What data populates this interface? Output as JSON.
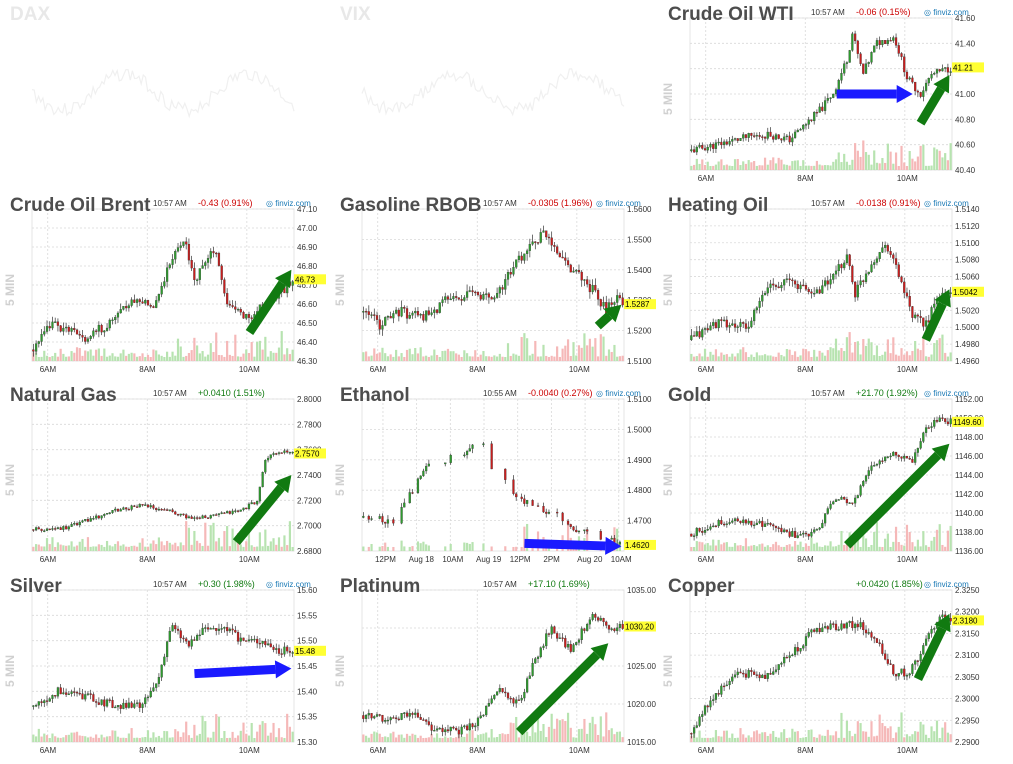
{
  "chart_data": [
    {
      "id": "dax",
      "type": "candlestick",
      "title": "DAX",
      "faded": true,
      "time": "",
      "change": "",
      "change_dir": "up",
      "source": "",
      "ylabel": "",
      "ylim": [
        0,
        1
      ],
      "yticks": [],
      "xticks": [],
      "last": null,
      "last_label": "",
      "arrow": null
    },
    {
      "id": "vix",
      "type": "candlestick",
      "title": "VIX",
      "faded": true,
      "time": "",
      "change": "",
      "change_dir": "up",
      "source": "",
      "ylabel": "",
      "ylim": [
        0,
        1
      ],
      "yticks": [],
      "xticks": [],
      "last": null,
      "last_label": "",
      "arrow": null
    },
    {
      "id": "wti",
      "type": "candlestick",
      "title": "Crude Oil WTI",
      "faded": false,
      "time": "10:57 AM",
      "change": "-0.06 (0.15%)",
      "change_dir": "dn",
      "source": "finviz.com",
      "ylabel": "5 MIN",
      "ylim": [
        40.4,
        41.6
      ],
      "yticks": [
        "41.60",
        "41.40",
        "41.20",
        "41.00",
        "40.80",
        "40.60",
        "40.40"
      ],
      "xticks": [
        "6AM",
        "8AM",
        "10AM"
      ],
      "last": 41.21,
      "last_label": "41.21",
      "keys": [
        [
          0,
          40.55
        ],
        [
          0.22,
          40.66
        ],
        [
          0.3,
          40.68
        ],
        [
          0.38,
          40.64
        ],
        [
          0.5,
          40.88
        ],
        [
          0.55,
          41.02
        ],
        [
          0.6,
          41.28
        ],
        [
          0.62,
          41.48
        ],
        [
          0.66,
          41.15
        ],
        [
          0.71,
          41.4
        ],
        [
          0.78,
          41.45
        ],
        [
          0.83,
          41.12
        ],
        [
          0.88,
          41.0
        ],
        [
          0.92,
          41.15
        ],
        [
          1,
          41.21
        ]
      ],
      "seed": 11,
      "vol": 0.03,
      "arrow": {
        "color": "blue",
        "from": [
          0.56,
          41.0
        ],
        "to": [
          0.85,
          41.0
        ]
      },
      "arrow2": {
        "color": "green",
        "from": [
          0.88,
          40.77
        ],
        "to": [
          0.99,
          41.15
        ]
      }
    },
    {
      "id": "brent",
      "type": "candlestick",
      "title": "Crude Oil Brent",
      "faded": false,
      "time": "10:57 AM",
      "change": "-0.43 (0.91%)",
      "change_dir": "dn",
      "source": "finviz.com",
      "ylabel": "5 MIN",
      "ylim": [
        46.3,
        47.1
      ],
      "yticks": [
        "47.10",
        "47.00",
        "46.90",
        "46.80",
        "46.70",
        "46.60",
        "46.50",
        "46.40",
        "46.30"
      ],
      "xticks": [
        "6AM",
        "8AM",
        "10AM"
      ],
      "last": 46.73,
      "last_label": "46.73",
      "keys": [
        [
          0,
          46.36
        ],
        [
          0.08,
          46.5
        ],
        [
          0.2,
          46.42
        ],
        [
          0.3,
          46.5
        ],
        [
          0.38,
          46.62
        ],
        [
          0.47,
          46.6
        ],
        [
          0.52,
          46.8
        ],
        [
          0.58,
          46.95
        ],
        [
          0.62,
          46.72
        ],
        [
          0.7,
          46.9
        ],
        [
          0.74,
          46.6
        ],
        [
          0.82,
          46.53
        ],
        [
          0.9,
          46.6
        ],
        [
          1,
          46.73
        ]
      ],
      "seed": 23,
      "vol": 0.025,
      "arrow": {
        "color": "green",
        "from": [
          0.83,
          46.45
        ],
        "to": [
          0.99,
          46.78
        ]
      }
    },
    {
      "id": "rbob",
      "type": "candlestick",
      "title": "Gasoline RBOB",
      "faded": false,
      "time": "10:57 AM",
      "change": "-0.0305 (1.96%)",
      "change_dir": "dn",
      "source": "finviz.com",
      "ylabel": "5 MIN",
      "ylim": [
        1.51,
        1.56
      ],
      "yticks": [
        "1.5600",
        "1.5500",
        "1.5400",
        "1.5300",
        "1.5200",
        "1.5100"
      ],
      "xticks": [
        "6AM",
        "8AM",
        "10AM"
      ],
      "last": 1.5287,
      "last_label": "1.5287",
      "keys": [
        [
          0,
          1.526
        ],
        [
          0.07,
          1.522
        ],
        [
          0.14,
          1.526
        ],
        [
          0.25,
          1.525
        ],
        [
          0.32,
          1.53
        ],
        [
          0.42,
          1.532
        ],
        [
          0.5,
          1.53
        ],
        [
          0.56,
          1.538
        ],
        [
          0.62,
          1.546
        ],
        [
          0.7,
          1.552
        ],
        [
          0.78,
          1.542
        ],
        [
          0.85,
          1.536
        ],
        [
          0.9,
          1.532
        ],
        [
          0.93,
          1.526
        ],
        [
          0.96,
          1.531
        ],
        [
          1,
          1.5287
        ]
      ],
      "seed": 37,
      "vol": 0.0018,
      "arrow": {
        "color": "green",
        "from": [
          0.9,
          1.5215
        ],
        "to": [
          0.99,
          1.5285
        ]
      }
    },
    {
      "id": "heating",
      "type": "candlestick",
      "title": "Heating Oil",
      "faded": false,
      "time": "10:57 AM",
      "change": "-0.0138 (0.91%)",
      "change_dir": "dn",
      "source": "finviz.com",
      "ylabel": "5 MIN",
      "ylim": [
        1.496,
        1.514
      ],
      "yticks": [
        "1.5140",
        "1.5120",
        "1.5100",
        "1.5080",
        "1.5060",
        "1.5040",
        "1.5020",
        "1.5000",
        "1.4980",
        "1.4960"
      ],
      "xticks": [
        "6AM",
        "8AM",
        "10AM"
      ],
      "last": 1.5042,
      "last_label": "1.5042",
      "keys": [
        [
          0,
          1.4985
        ],
        [
          0.1,
          1.5005
        ],
        [
          0.22,
          1.5
        ],
        [
          0.3,
          1.505
        ],
        [
          0.38,
          1.5055
        ],
        [
          0.47,
          1.504
        ],
        [
          0.55,
          1.506
        ],
        [
          0.6,
          1.5085
        ],
        [
          0.63,
          1.504
        ],
        [
          0.7,
          1.508
        ],
        [
          0.75,
          1.51
        ],
        [
          0.8,
          1.506
        ],
        [
          0.85,
          1.501
        ],
        [
          0.9,
          1.5005
        ],
        [
          0.95,
          1.5035
        ],
        [
          1,
          1.5042
        ]
      ],
      "seed": 41,
      "vol": 0.0006,
      "arrow": {
        "color": "green",
        "from": [
          0.9,
          1.4985
        ],
        "to": [
          0.99,
          1.5045
        ]
      }
    },
    {
      "id": "natgas",
      "type": "candlestick",
      "title": "Natural Gas",
      "faded": false,
      "time": "10:57 AM",
      "change": "+0.0410 (1.51%)",
      "change_dir": "up",
      "source": "",
      "ylabel": "5 MIN",
      "ylim": [
        2.68,
        2.8
      ],
      "yticks": [
        "2.8000",
        "2.7800",
        "2.7600",
        "2.7400",
        "2.7200",
        "2.7000",
        "2.6800"
      ],
      "xticks": [
        "6AM",
        "8AM",
        "10AM"
      ],
      "last": 2.757,
      "last_label": "2.7570",
      "keys": [
        [
          0,
          2.697
        ],
        [
          0.12,
          2.698
        ],
        [
          0.22,
          2.705
        ],
        [
          0.32,
          2.712
        ],
        [
          0.42,
          2.716
        ],
        [
          0.52,
          2.712
        ],
        [
          0.6,
          2.706
        ],
        [
          0.7,
          2.708
        ],
        [
          0.8,
          2.712
        ],
        [
          0.86,
          2.72
        ],
        [
          0.89,
          2.752
        ],
        [
          0.94,
          2.758
        ],
        [
          1,
          2.757
        ]
      ],
      "seed": 53,
      "vol": 0.0015,
      "arrow": {
        "color": "green",
        "from": [
          0.78,
          2.687
        ],
        "to": [
          0.99,
          2.74
        ]
      }
    },
    {
      "id": "ethanol",
      "type": "candlestick",
      "title": "Ethanol",
      "faded": false,
      "time": "10:55 AM",
      "change": "-0.0040 (0.27%)",
      "change_dir": "dn",
      "source": "finviz.com",
      "ylabel": "5 MIN",
      "ylim": [
        1.46,
        1.51
      ],
      "yticks": [
        "1.5100",
        "1.5000",
        "1.4900",
        "1.4800",
        "1.4700"
      ],
      "xticks": [
        "12PM",
        "Aug 18",
        "10AM",
        "Aug 19",
        "12PM",
        "2PM",
        "Aug 20",
        "10AM"
      ],
      "last": 1.462,
      "last_label": "1.4620",
      "keys": [
        [
          0,
          1.471
        ],
        [
          0.12,
          1.47
        ],
        [
          0.18,
          1.478
        ],
        [
          0.25,
          1.488
        ],
        [
          0.35,
          1.491
        ],
        [
          0.42,
          1.493
        ],
        [
          0.44,
          1.503
        ],
        [
          0.48,
          1.489
        ],
        [
          0.52,
          1.486
        ],
        [
          0.58,
          1.478
        ],
        [
          0.65,
          1.475
        ],
        [
          0.72,
          1.473
        ],
        [
          0.8,
          1.468
        ],
        [
          0.88,
          1.465
        ],
        [
          1,
          1.462
        ]
      ],
      "seed": 67,
      "vol": 0.0012,
      "sparse": true,
      "arrow": {
        "color": "blue",
        "from": [
          0.62,
          1.4625
        ],
        "to": [
          0.99,
          1.4615
        ]
      }
    },
    {
      "id": "gold",
      "type": "candlestick",
      "title": "Gold",
      "faded": false,
      "time": "10:57 AM",
      "change": "+21.70 (1.92%)",
      "change_dir": "up",
      "source": "finviz.com",
      "ylabel": "5 MIN",
      "ylim": [
        1136,
        1152
      ],
      "yticks": [
        "1152.00",
        "1150.00",
        "1148.00",
        "1146.00",
        "1144.00",
        "1142.00",
        "1140.00",
        "1138.00",
        "1136.00"
      ],
      "xticks": [
        "6AM",
        "8AM",
        "10AM"
      ],
      "last": 1149.6,
      "last_label": "1149.60",
      "keys": [
        [
          0,
          1137.8
        ],
        [
          0.12,
          1139
        ],
        [
          0.2,
          1139.2
        ],
        [
          0.3,
          1138.6
        ],
        [
          0.42,
          1137.5
        ],
        [
          0.48,
          1138
        ],
        [
          0.55,
          1141.5
        ],
        [
          0.62,
          1141.2
        ],
        [
          0.7,
          1145
        ],
        [
          0.78,
          1146.2
        ],
        [
          0.85,
          1145.5
        ],
        [
          0.9,
          1148.8
        ],
        [
          0.95,
          1149.8
        ],
        [
          1,
          1149.6
        ]
      ],
      "seed": 71,
      "vol": 0.35,
      "arrow": {
        "color": "green",
        "from": [
          0.6,
          1136.6
        ],
        "to": [
          0.99,
          1147.3
        ]
      }
    },
    {
      "id": "silver",
      "type": "candlestick",
      "title": "Silver",
      "faded": false,
      "time": "10:57 AM",
      "change": "+0.30 (1.98%)",
      "change_dir": "up",
      "source": "finviz.com",
      "ylabel": "5 MIN",
      "ylim": [
        15.3,
        15.6
      ],
      "yticks": [
        "15.60",
        "15.55",
        "15.50",
        "15.45",
        "15.40",
        "15.35",
        "15.30"
      ],
      "xticks": [
        "6AM",
        "8AM",
        "10AM"
      ],
      "last": 15.48,
      "last_label": "15.48",
      "keys": [
        [
          0,
          15.37
        ],
        [
          0.1,
          15.4
        ],
        [
          0.2,
          15.39
        ],
        [
          0.33,
          15.37
        ],
        [
          0.42,
          15.37
        ],
        [
          0.48,
          15.42
        ],
        [
          0.53,
          15.53
        ],
        [
          0.6,
          15.49
        ],
        [
          0.65,
          15.52
        ],
        [
          0.72,
          15.53
        ],
        [
          0.8,
          15.5
        ],
        [
          0.88,
          15.5
        ],
        [
          0.94,
          15.48
        ],
        [
          1,
          15.48
        ]
      ],
      "seed": 83,
      "vol": 0.008,
      "arrow": {
        "color": "blue",
        "from": [
          0.62,
          15.435
        ],
        "to": [
          0.99,
          15.445
        ]
      }
    },
    {
      "id": "platinum",
      "type": "candlestick",
      "title": "Platinum",
      "faded": false,
      "time": "10:57 AM",
      "change": "+17.10 (1.69%)",
      "change_dir": "up",
      "source": "",
      "ylabel": "5 MIN",
      "ylim": [
        1015,
        1035
      ],
      "yticks": [
        "1035.00",
        "1030.00",
        "1025.00",
        "1020.00",
        "1015.00"
      ],
      "xticks": [
        "6AM",
        "8AM",
        "10AM"
      ],
      "last": 1030.2,
      "last_label": "1030.20",
      "keys": [
        [
          0,
          1018.5
        ],
        [
          0.12,
          1018
        ],
        [
          0.2,
          1019
        ],
        [
          0.28,
          1016.5
        ],
        [
          0.38,
          1016.5
        ],
        [
          0.45,
          1018
        ],
        [
          0.52,
          1022
        ],
        [
          0.6,
          1020
        ],
        [
          0.65,
          1025
        ],
        [
          0.72,
          1030
        ],
        [
          0.8,
          1027
        ],
        [
          0.88,
          1032
        ],
        [
          0.94,
          1030
        ],
        [
          1,
          1030.2
        ]
      ],
      "seed": 97,
      "vol": 0.5,
      "arrow": {
        "color": "green",
        "from": [
          0.6,
          1016.3
        ],
        "to": [
          0.94,
          1028
        ]
      }
    },
    {
      "id": "copper",
      "type": "candlestick",
      "title": "Copper",
      "faded": false,
      "time": "",
      "change": "+0.0420 (1.85%)",
      "change_dir": "up",
      "source": "finviz.com",
      "ylabel": "5 MIN",
      "ylim": [
        2.29,
        2.325
      ],
      "yticks": [
        "2.3250",
        "2.3200",
        "2.3150",
        "2.3100",
        "2.3050",
        "2.3000",
        "2.2950",
        "2.2900"
      ],
      "xticks": [
        "6AM",
        "8AM",
        "10AM"
      ],
      "last": 2.318,
      "last_label": "2.3180",
      "keys": [
        [
          0,
          2.292
        ],
        [
          0.08,
          2.3
        ],
        [
          0.18,
          2.306
        ],
        [
          0.28,
          2.305
        ],
        [
          0.38,
          2.31
        ],
        [
          0.48,
          2.316
        ],
        [
          0.58,
          2.317
        ],
        [
          0.65,
          2.317
        ],
        [
          0.72,
          2.312
        ],
        [
          0.78,
          2.306
        ],
        [
          0.84,
          2.306
        ],
        [
          0.9,
          2.313
        ],
        [
          0.95,
          2.319
        ],
        [
          1,
          2.318
        ]
      ],
      "seed": 101,
      "vol": 0.001,
      "arrow": {
        "color": "green",
        "from": [
          0.87,
          2.3045
        ],
        "to": [
          0.99,
          2.3195
        ]
      }
    }
  ]
}
